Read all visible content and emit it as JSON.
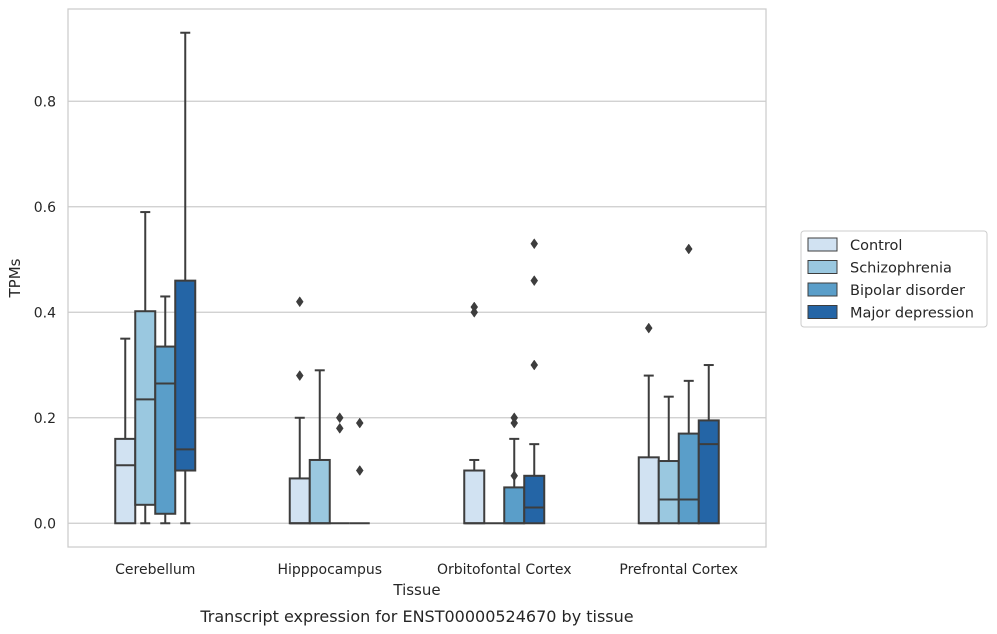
{
  "caption": "Transcript expression for ENST00000524670 by tissue",
  "chart_data": {
    "type": "box",
    "xlabel": "Tissue",
    "ylabel": "TPMs",
    "ylim": [
      -0.045,
      0.975
    ],
    "yticks": [
      "0.0",
      "0.2",
      "0.4",
      "0.6",
      "0.8"
    ],
    "grid": "horizontal",
    "legend_position": "right",
    "categories": [
      "Cerebellum",
      "Hipppocampus",
      "Orbitofontal Cortex",
      "Prefrontal Cortex"
    ],
    "series": [
      {
        "name": "Control",
        "color": "#d1e2f2",
        "boxes": [
          {
            "min": 0.0,
            "q1": 0.0,
            "median": 0.11,
            "q3": 0.16,
            "max": 0.35,
            "outliers": []
          },
          {
            "min": 0.0,
            "q1": 0.0,
            "median": 0.0,
            "q3": 0.085,
            "max": 0.2,
            "outliers": [
              0.28,
              0.42
            ]
          },
          {
            "min": 0.0,
            "q1": 0.0,
            "median": 0.0,
            "q3": 0.1,
            "max": 0.12,
            "outliers": [
              0.4,
              0.41
            ]
          },
          {
            "min": 0.0,
            "q1": 0.0,
            "median": 0.0,
            "q3": 0.125,
            "max": 0.28,
            "outliers": [
              0.37
            ]
          }
        ]
      },
      {
        "name": "Schizophrenia",
        "color": "#9ac8e0",
        "boxes": [
          {
            "min": 0.0,
            "q1": 0.035,
            "median": 0.235,
            "q3": 0.402,
            "max": 0.59,
            "outliers": []
          },
          {
            "min": 0.0,
            "q1": 0.0,
            "median": 0.0,
            "q3": 0.12,
            "max": 0.29,
            "outliers": []
          },
          {
            "min": 0.0,
            "q1": 0.0,
            "median": 0.0,
            "q3": 0.0,
            "max": 0.0,
            "outliers": []
          },
          {
            "min": 0.0,
            "q1": 0.0,
            "median": 0.045,
            "q3": 0.118,
            "max": 0.24,
            "outliers": []
          }
        ]
      },
      {
        "name": "Bipolar disorder",
        "color": "#5a9ec9",
        "boxes": [
          {
            "min": 0.0,
            "q1": 0.018,
            "median": 0.265,
            "q3": 0.335,
            "max": 0.43,
            "outliers": []
          },
          {
            "min": 0.0,
            "q1": 0.0,
            "median": 0.0,
            "q3": 0.0,
            "max": 0.0,
            "outliers": [
              0.18,
              0.2
            ]
          },
          {
            "min": 0.0,
            "q1": 0.0,
            "median": 0.0,
            "q3": 0.068,
            "max": 0.16,
            "outliers": [
              0.09,
              0.19,
              0.2
            ]
          },
          {
            "min": 0.0,
            "q1": 0.0,
            "median": 0.045,
            "q3": 0.17,
            "max": 0.27,
            "outliers": [
              0.52
            ]
          }
        ]
      },
      {
        "name": "Major depression",
        "color": "#2465a6",
        "boxes": [
          {
            "min": 0.0,
            "q1": 0.1,
            "median": 0.14,
            "q3": 0.46,
            "max": 0.93,
            "outliers": []
          },
          {
            "min": 0.0,
            "q1": 0.0,
            "median": 0.0,
            "q3": 0.0,
            "max": 0.0,
            "outliers": [
              0.1,
              0.19
            ]
          },
          {
            "min": 0.0,
            "q1": 0.0,
            "median": 0.03,
            "q3": 0.09,
            "max": 0.15,
            "outliers": [
              0.3,
              0.46,
              0.53
            ]
          },
          {
            "min": 0.0,
            "q1": 0.0,
            "median": 0.15,
            "q3": 0.195,
            "max": 0.3,
            "outliers": []
          }
        ]
      }
    ]
  }
}
